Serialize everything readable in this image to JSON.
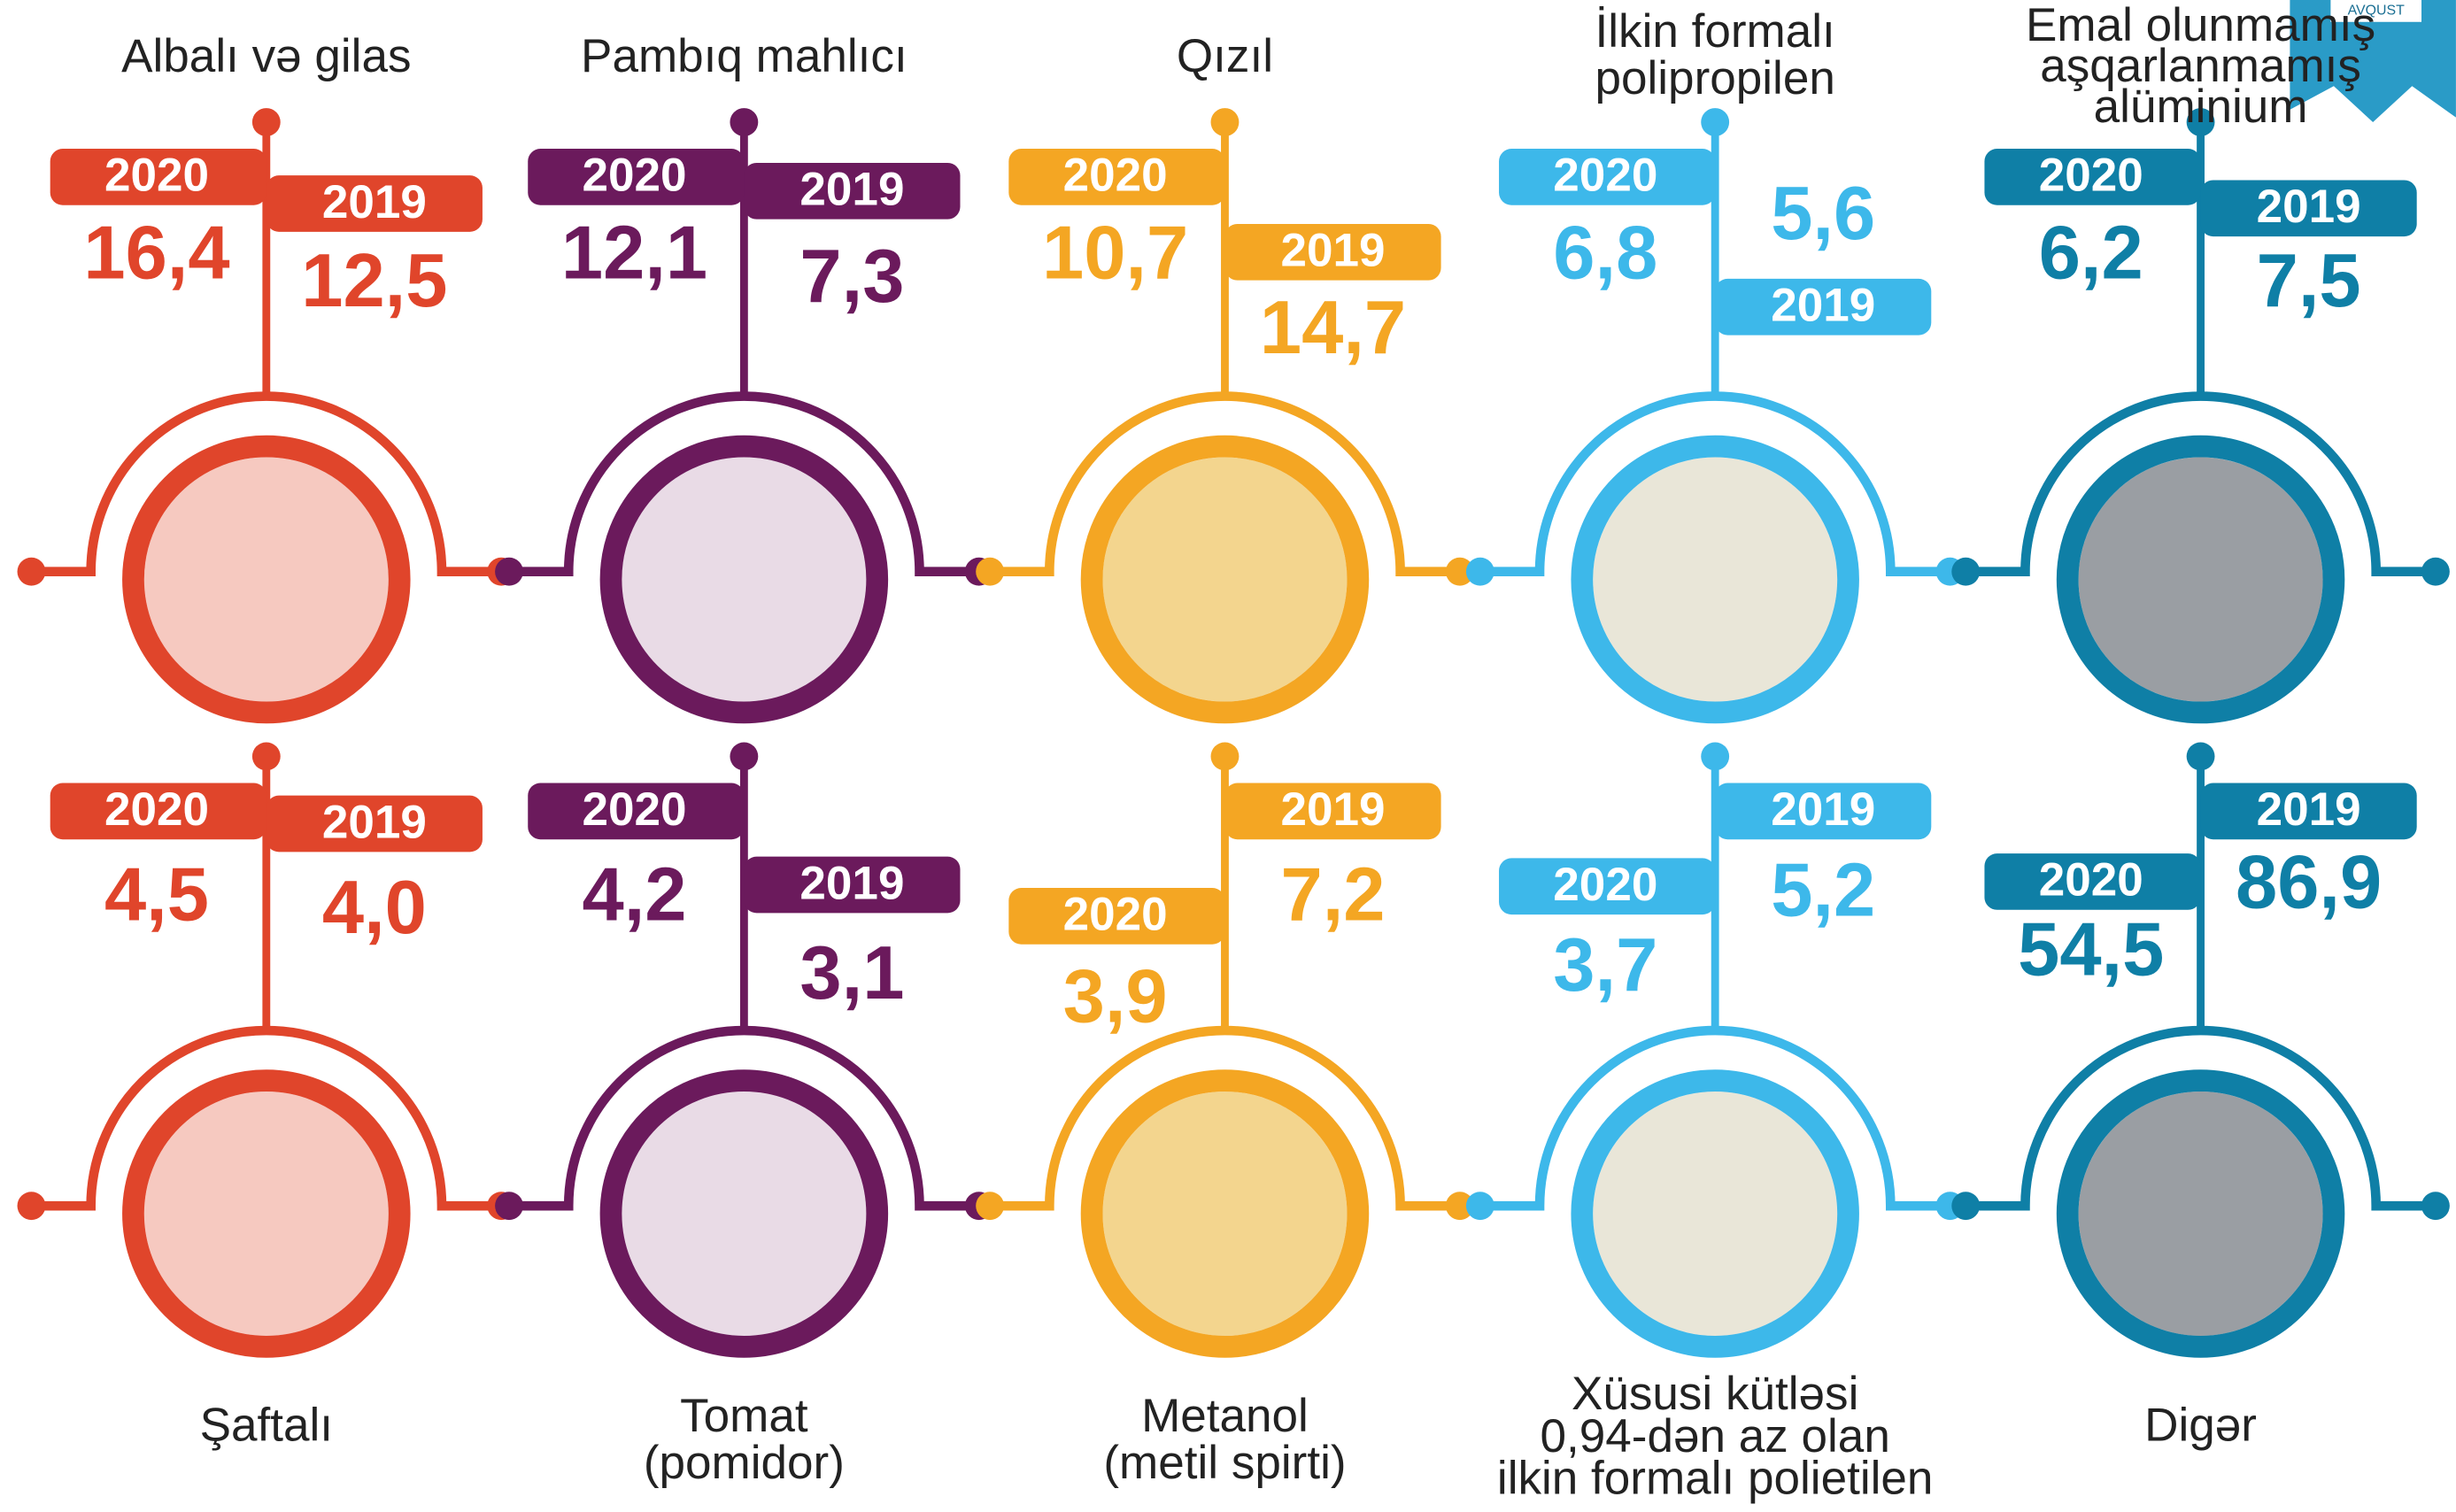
{
  "badge": "AVQUST",
  "items": [
    {
      "label": [
        "Albalı və gilas"
      ],
      "year_a": "2020",
      "value_a": "16,4",
      "year_b": "2019",
      "value_b": "12,5"
    },
    {
      "label": [
        "Pambıq mahlıcı"
      ],
      "year_a": "2020",
      "value_a": "12,1",
      "year_b": "2019",
      "value_b": "7,3"
    },
    {
      "label": [
        "Qızıl"
      ],
      "year_a": "2020",
      "value_a": "10,7",
      "year_b": "2019",
      "value_b": "14,7"
    },
    {
      "label": [
        "İlkin formalı",
        "polipropilen"
      ],
      "year_a": "2020",
      "value_a": "6,8",
      "year_b": "2019",
      "value_b": "5,6"
    },
    {
      "label": [
        "Emal olunmamış",
        "aşqarlanmamış",
        "alüminium"
      ],
      "year_a": "2020",
      "value_a": "6,2",
      "year_b": "2019",
      "value_b": "7,5"
    },
    {
      "label": [
        "Şaftalı"
      ],
      "year_a": "2020",
      "value_a": "4,5",
      "year_b": "2019",
      "value_b": "4,0"
    },
    {
      "label": [
        "Tomat",
        "(pomidor)"
      ],
      "year_a": "2020",
      "value_a": "4,2",
      "year_b": "2019",
      "value_b": "3,1"
    },
    {
      "label": [
        "Metanol",
        "(metil spirti)"
      ],
      "year_a": "2020",
      "value_a": "3,9",
      "year_b": "2019",
      "value_b": "7,2"
    },
    {
      "label": [
        "Xüsusi kütləsi",
        "0,94-dən az olan",
        "ilkin formalı polietilen"
      ],
      "year_a": "2020",
      "value_a": "3,7",
      "year_b": "2019",
      "value_b": "5,2"
    },
    {
      "label": [
        "Digər"
      ],
      "year_a": "2020",
      "value_a": "54,5",
      "year_b": "2019",
      "value_b": "86,9"
    }
  ]
}
